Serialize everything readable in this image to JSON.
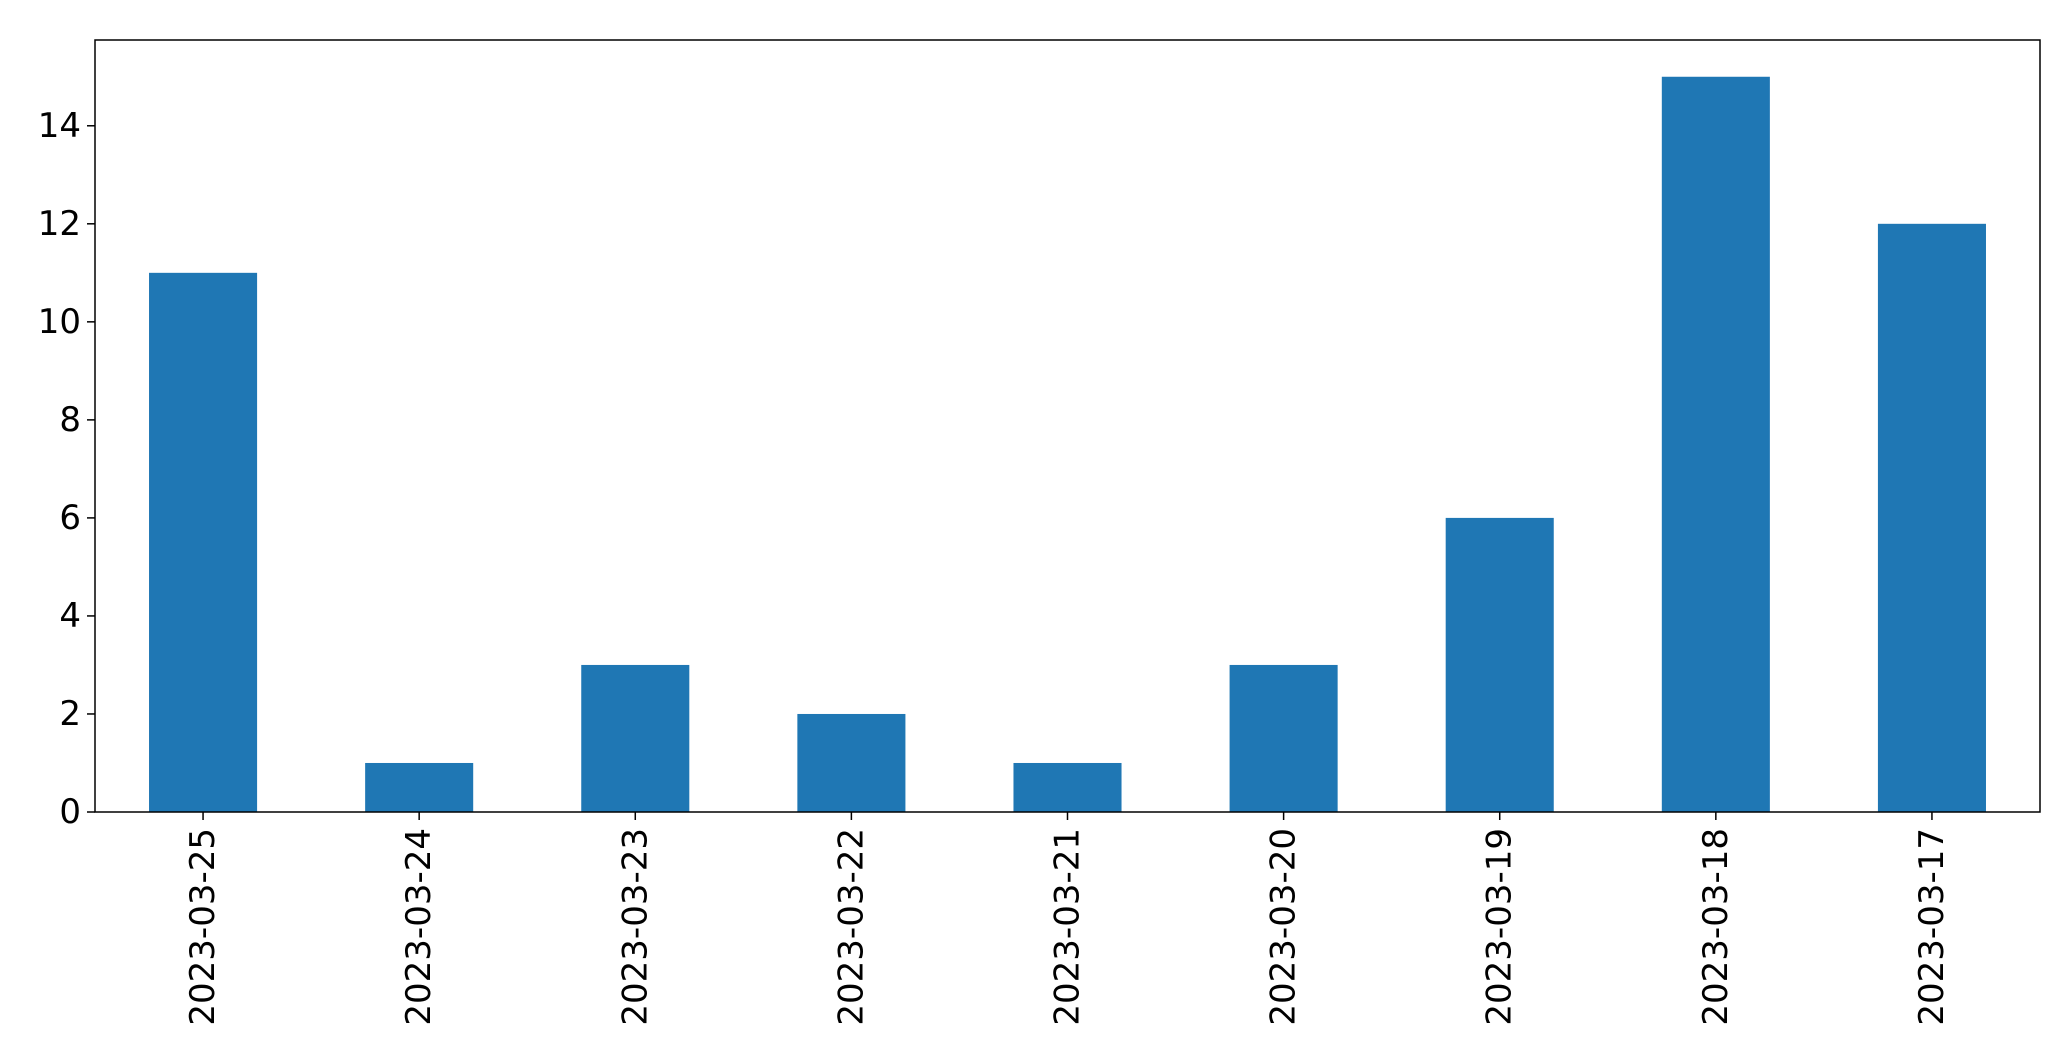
{
  "chart_data": {
    "type": "bar",
    "categories": [
      "2023-03-25",
      "2023-03-24",
      "2023-03-23",
      "2023-03-22",
      "2023-03-21",
      "2023-03-20",
      "2023-03-19",
      "2023-03-18",
      "2023-03-17"
    ],
    "values": [
      11,
      1,
      3,
      2,
      1,
      3,
      6,
      15,
      12
    ],
    "title": "",
    "xlabel": "",
    "ylabel": "",
    "ylim": [
      0,
      15.75
    ],
    "yticks": [
      0,
      2,
      4,
      6,
      8,
      10,
      12,
      14
    ],
    "bar_color": "#1f77b4",
    "grid": false,
    "legend": "none"
  }
}
